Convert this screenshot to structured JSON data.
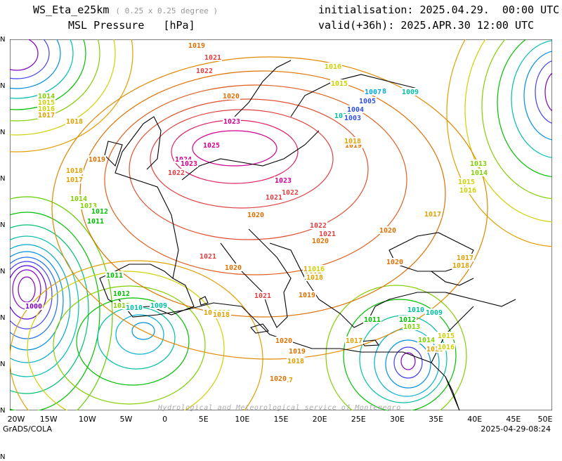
{
  "header": {
    "model": "WS_Eta_e25km",
    "resolution": "( 0.25 x 0.25 degree )",
    "field": "MSL Pressure",
    "unit": "[hPa]",
    "init_label": "initialisation:",
    "init_value": "2025.04.29.  00:00 UTC",
    "valid_label": "valid(+36h):",
    "valid_value": "2025.APR.30 12:00 UTC"
  },
  "axes": {
    "lon_ticks": [
      "20W",
      "15W",
      "10W",
      "5W",
      "0",
      "5E",
      "10E",
      "15E",
      "20E",
      "25E",
      "30E",
      "35E",
      "40E",
      "45E",
      "50E"
    ],
    "lat_ticks": [
      "N",
      "N",
      "N",
      "N",
      "N",
      "N",
      "N",
      "N",
      "N",
      "N"
    ]
  },
  "footer": {
    "left": "GrADS/COLA",
    "right": "2025-04-29-08:24",
    "credit": "Hydrological and Meteorological service of Montenegro"
  },
  "colors": {
    "c1000": "#8000c0",
    "c1005": "#3050e0",
    "c1008": "#00a8e0",
    "c1010": "#00c0a0",
    "c1011": "#00c000",
    "c1013": "#80d000",
    "c1015": "#d0d000",
    "c1017": "#e0a000",
    "c1019": "#e07000",
    "c1021": "#e04040",
    "c1023": "#d00090",
    "coast": "#000000"
  },
  "isobar_labels": [
    {
      "text": "1019"
    },
    {
      "text": "1021"
    },
    {
      "text": "1022"
    },
    {
      "text": "1020"
    },
    {
      "text": "1023"
    },
    {
      "text": "1025"
    },
    {
      "text": "1024"
    },
    {
      "text": "1023"
    },
    {
      "text": "1022"
    },
    {
      "text": "1023"
    },
    {
      "text": "1022"
    },
    {
      "text": "1021"
    },
    {
      "text": "1020"
    },
    {
      "text": "1022"
    },
    {
      "text": "1021"
    },
    {
      "text": "1020"
    },
    {
      "text": "1021"
    },
    {
      "text": "1020"
    },
    {
      "text": "1021"
    },
    {
      "text": "1020"
    },
    {
      "text": "1019"
    },
    {
      "text": "1018"
    },
    {
      "text": "1017"
    },
    {
      "text": "1016"
    },
    {
      "text": "1015"
    },
    {
      "text": "1014"
    },
    {
      "text": "1013"
    },
    {
      "text": "1012"
    },
    {
      "text": "1011"
    },
    {
      "text": "1010"
    },
    {
      "text": "1009"
    },
    {
      "text": "1008"
    },
    {
      "text": "1007"
    },
    {
      "text": "1005"
    },
    {
      "text": "1004"
    },
    {
      "text": "1003"
    },
    {
      "text": "1000"
    },
    {
      "text": "1014"
    },
    {
      "text": "1015"
    },
    {
      "text": "1016"
    },
    {
      "text": "1017"
    },
    {
      "text": "1018"
    },
    {
      "text": "1019"
    },
    {
      "text": "1018"
    },
    {
      "text": "1017"
    },
    {
      "text": "1014"
    },
    {
      "text": "1013"
    },
    {
      "text": "1012"
    },
    {
      "text": "1011"
    },
    {
      "text": "1011"
    },
    {
      "text": "1012"
    },
    {
      "text": "1013"
    },
    {
      "text": "1010"
    },
    {
      "text": "1009"
    },
    {
      "text": "1010"
    },
    {
      "text": "1009"
    },
    {
      "text": "1011"
    },
    {
      "text": "1013"
    },
    {
      "text": "1017"
    },
    {
      "text": "1016"
    },
    {
      "text": "1017"
    },
    {
      "text": "1016"
    },
    {
      "text": "1018"
    },
    {
      "text": "1019"
    },
    {
      "text": "1013"
    },
    {
      "text": "1014"
    },
    {
      "text": "1015"
    },
    {
      "text": "1016"
    },
    {
      "text": "1018"
    },
    {
      "text": "1017"
    },
    {
      "text": "1020"
    },
    {
      "text": "1020"
    },
    {
      "text": "1018"
    },
    {
      "text": "1017"
    },
    {
      "text": "1017"
    },
    {
      "text": "1018"
    },
    {
      "text": "1019"
    },
    {
      "text": "1020"
    },
    {
      "text": "1017"
    },
    {
      "text": "1018"
    },
    {
      "text": "1016"
    },
    {
      "text": "1015"
    },
    {
      "text": "1014"
    },
    {
      "text": "1013"
    },
    {
      "text": "1012"
    }
  ]
}
